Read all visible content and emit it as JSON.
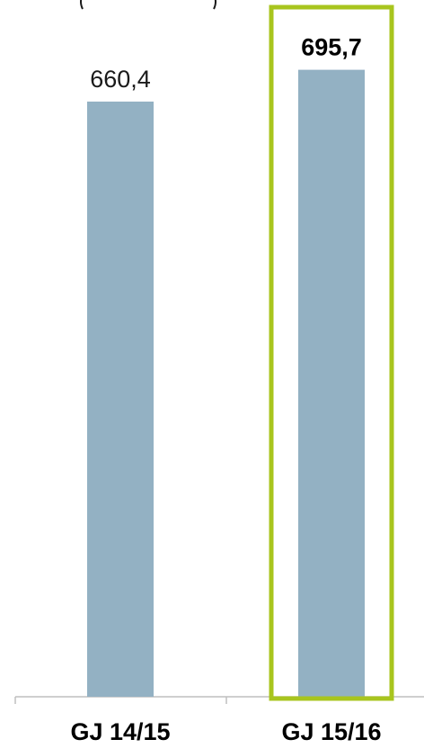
{
  "chart_data": {
    "type": "bar",
    "title": "",
    "xlabel": "",
    "ylabel": "",
    "categories": [
      "GJ 14/15",
      "GJ 15/16"
    ],
    "values": [
      660.4,
      695.7
    ],
    "value_labels": [
      "660,4",
      "695,7"
    ],
    "highlighted_index": 1,
    "bar_color": "#93b1c3",
    "highlight_color": "#a8c51e",
    "axis_color": "#bfbfbf",
    "ylim": [
      0,
      720
    ],
    "grid": false,
    "legend": "none"
  }
}
